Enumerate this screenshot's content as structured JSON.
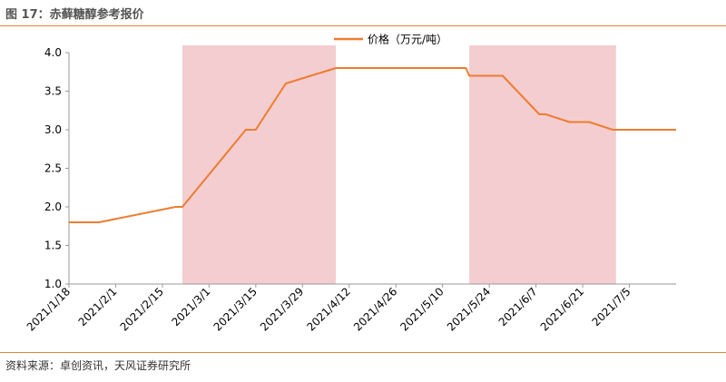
{
  "figure": {
    "title": "图 17：赤藓糖醇参考报价",
    "source": "资料来源：卓创资讯，天风证券研究所"
  },
  "colors": {
    "line": "#ed7d31",
    "shade": "#f4cdd0",
    "rule": "#e8823a",
    "axis": "#9a9a9a"
  },
  "chart_data": {
    "type": "line",
    "title": "",
    "xlabel": "",
    "ylabel": "",
    "ylim": [
      1.0,
      4.0
    ],
    "y_ticks": [
      "1.0",
      "1.5",
      "2.0",
      "2.5",
      "3.0",
      "3.5",
      "4.0"
    ],
    "x_range": [
      "2021-01-18",
      "2021-07-19"
    ],
    "x_ticks": [
      "2021/1/18",
      "2021/2/1",
      "2021/2/15",
      "2021/3/1",
      "2021/3/15",
      "2021/3/29",
      "2021/4/12",
      "2021/4/26",
      "2021/5/10",
      "2021/5/24",
      "2021/6/7",
      "2021/6/21",
      "2021/7/5"
    ],
    "legend_position": "top-center",
    "grid": false,
    "shaded_periods": [
      {
        "start": "2021-02-21",
        "end": "2021-04-08"
      },
      {
        "start": "2021-05-18",
        "end": "2021-07-01"
      }
    ],
    "series": [
      {
        "name": "价格（万元/吨）",
        "points": [
          {
            "x": "2021-01-18",
            "y": 1.8
          },
          {
            "x": "2021-01-27",
            "y": 1.8
          },
          {
            "x": "2021-02-19",
            "y": 2.0
          },
          {
            "x": "2021-02-21",
            "y": 2.0
          },
          {
            "x": "2021-03-12",
            "y": 3.0
          },
          {
            "x": "2021-03-15",
            "y": 3.0
          },
          {
            "x": "2021-03-24",
            "y": 3.6
          },
          {
            "x": "2021-04-08",
            "y": 3.8
          },
          {
            "x": "2021-05-17",
            "y": 3.8
          },
          {
            "x": "2021-05-18",
            "y": 3.7
          },
          {
            "x": "2021-05-28",
            "y": 3.7
          },
          {
            "x": "2021-06-08",
            "y": 3.2
          },
          {
            "x": "2021-06-10",
            "y": 3.2
          },
          {
            "x": "2021-06-17",
            "y": 3.1
          },
          {
            "x": "2021-06-23",
            "y": 3.1
          },
          {
            "x": "2021-06-30",
            "y": 3.0
          },
          {
            "x": "2021-07-19",
            "y": 3.0
          }
        ]
      }
    ]
  }
}
